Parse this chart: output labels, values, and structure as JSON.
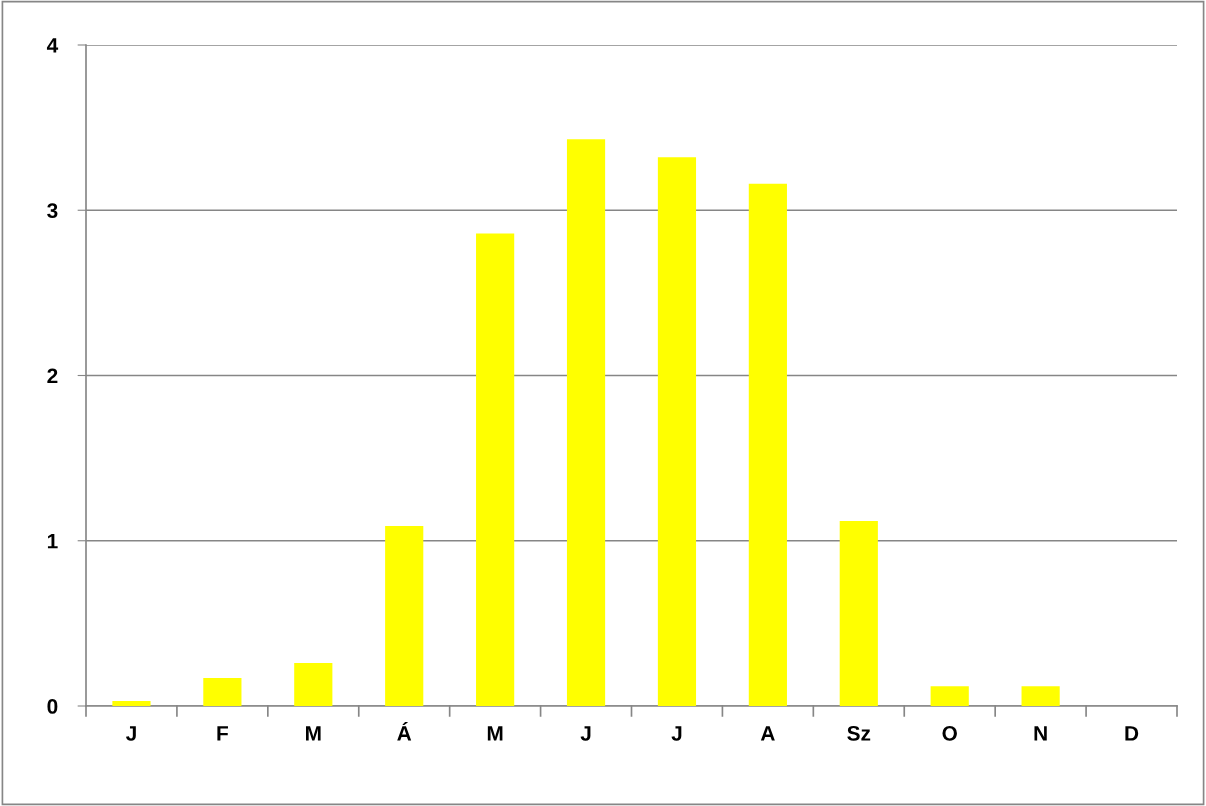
{
  "chart_data": {
    "type": "bar",
    "categories": [
      "J",
      "F",
      "M",
      "Á",
      "M",
      "J",
      "J",
      "A",
      "Sz",
      "O",
      "N",
      "D"
    ],
    "values": [
      0.03,
      0.17,
      0.26,
      1.09,
      2.86,
      3.43,
      3.32,
      3.16,
      1.12,
      0.12,
      0.12,
      0
    ],
    "color": "#ffff00",
    "ylim": [
      0,
      4
    ],
    "yticks": [
      0,
      1,
      2,
      3,
      4
    ],
    "grid": "y"
  }
}
